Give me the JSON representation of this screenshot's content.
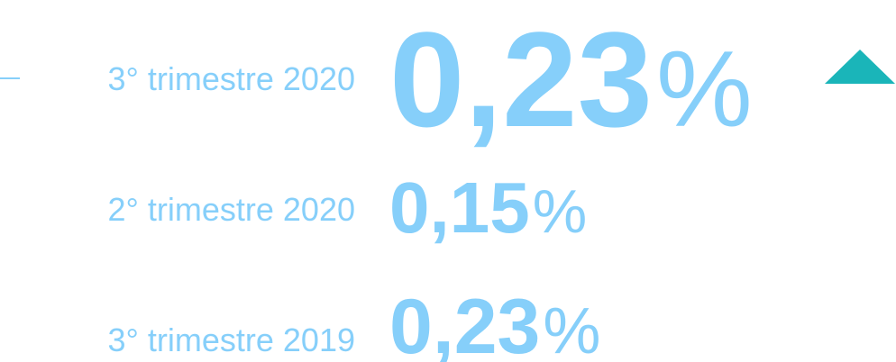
{
  "rows": [
    {
      "label": "3° trimestre 2020",
      "value": "0,23",
      "unit": "%"
    },
    {
      "label": "2° trimestre 2020",
      "value": "0,15",
      "unit": "%"
    },
    {
      "label": "3° trimestre 2019",
      "value": "0,23",
      "unit": "%"
    }
  ]
}
